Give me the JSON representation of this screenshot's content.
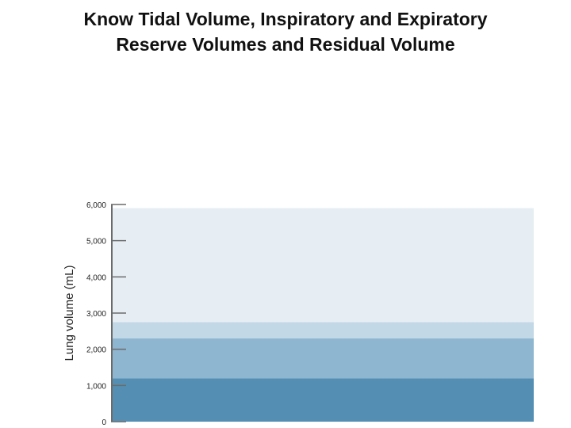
{
  "slide": {
    "title_line1": "Know Tidal Volume, Inspiratory and Expiratory",
    "title_line2": "Reserve Volumes and Residual Volume"
  },
  "chart_data": {
    "type": "area",
    "title": "",
    "xlabel": "",
    "ylabel": "Lung volume (mL)",
    "ylim": [
      0,
      6000
    ],
    "yticks": [
      0,
      1000,
      2000,
      3000,
      4000,
      5000,
      6000
    ],
    "ytick_labels": [
      "0",
      "1,000",
      "2,000",
      "3,000",
      "4,000",
      "5,000",
      "6,000"
    ],
    "grid": false,
    "bands": [
      {
        "from": 0,
        "to": 1200,
        "color": "#548fb3"
      },
      {
        "from": 1200,
        "to": 2300,
        "color": "#8fb6d0"
      },
      {
        "from": 2300,
        "to": 2750,
        "color": "#c2d8e6"
      },
      {
        "from": 2750,
        "to": 5900,
        "color": "#e6eef4"
      }
    ]
  }
}
